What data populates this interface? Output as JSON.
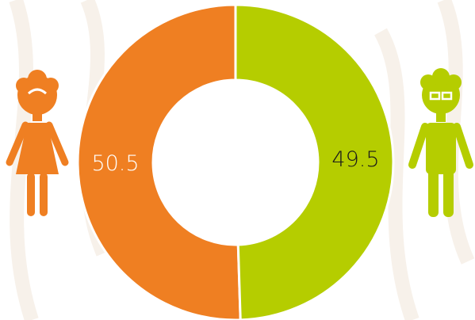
{
  "chart_data": {
    "type": "pie",
    "values": [
      50.5,
      49.5
    ],
    "colors": [
      "#ef7f22",
      "#b5cd00"
    ],
    "label_colors": [
      "#ffffff",
      "#1a1a1a"
    ]
  }
}
